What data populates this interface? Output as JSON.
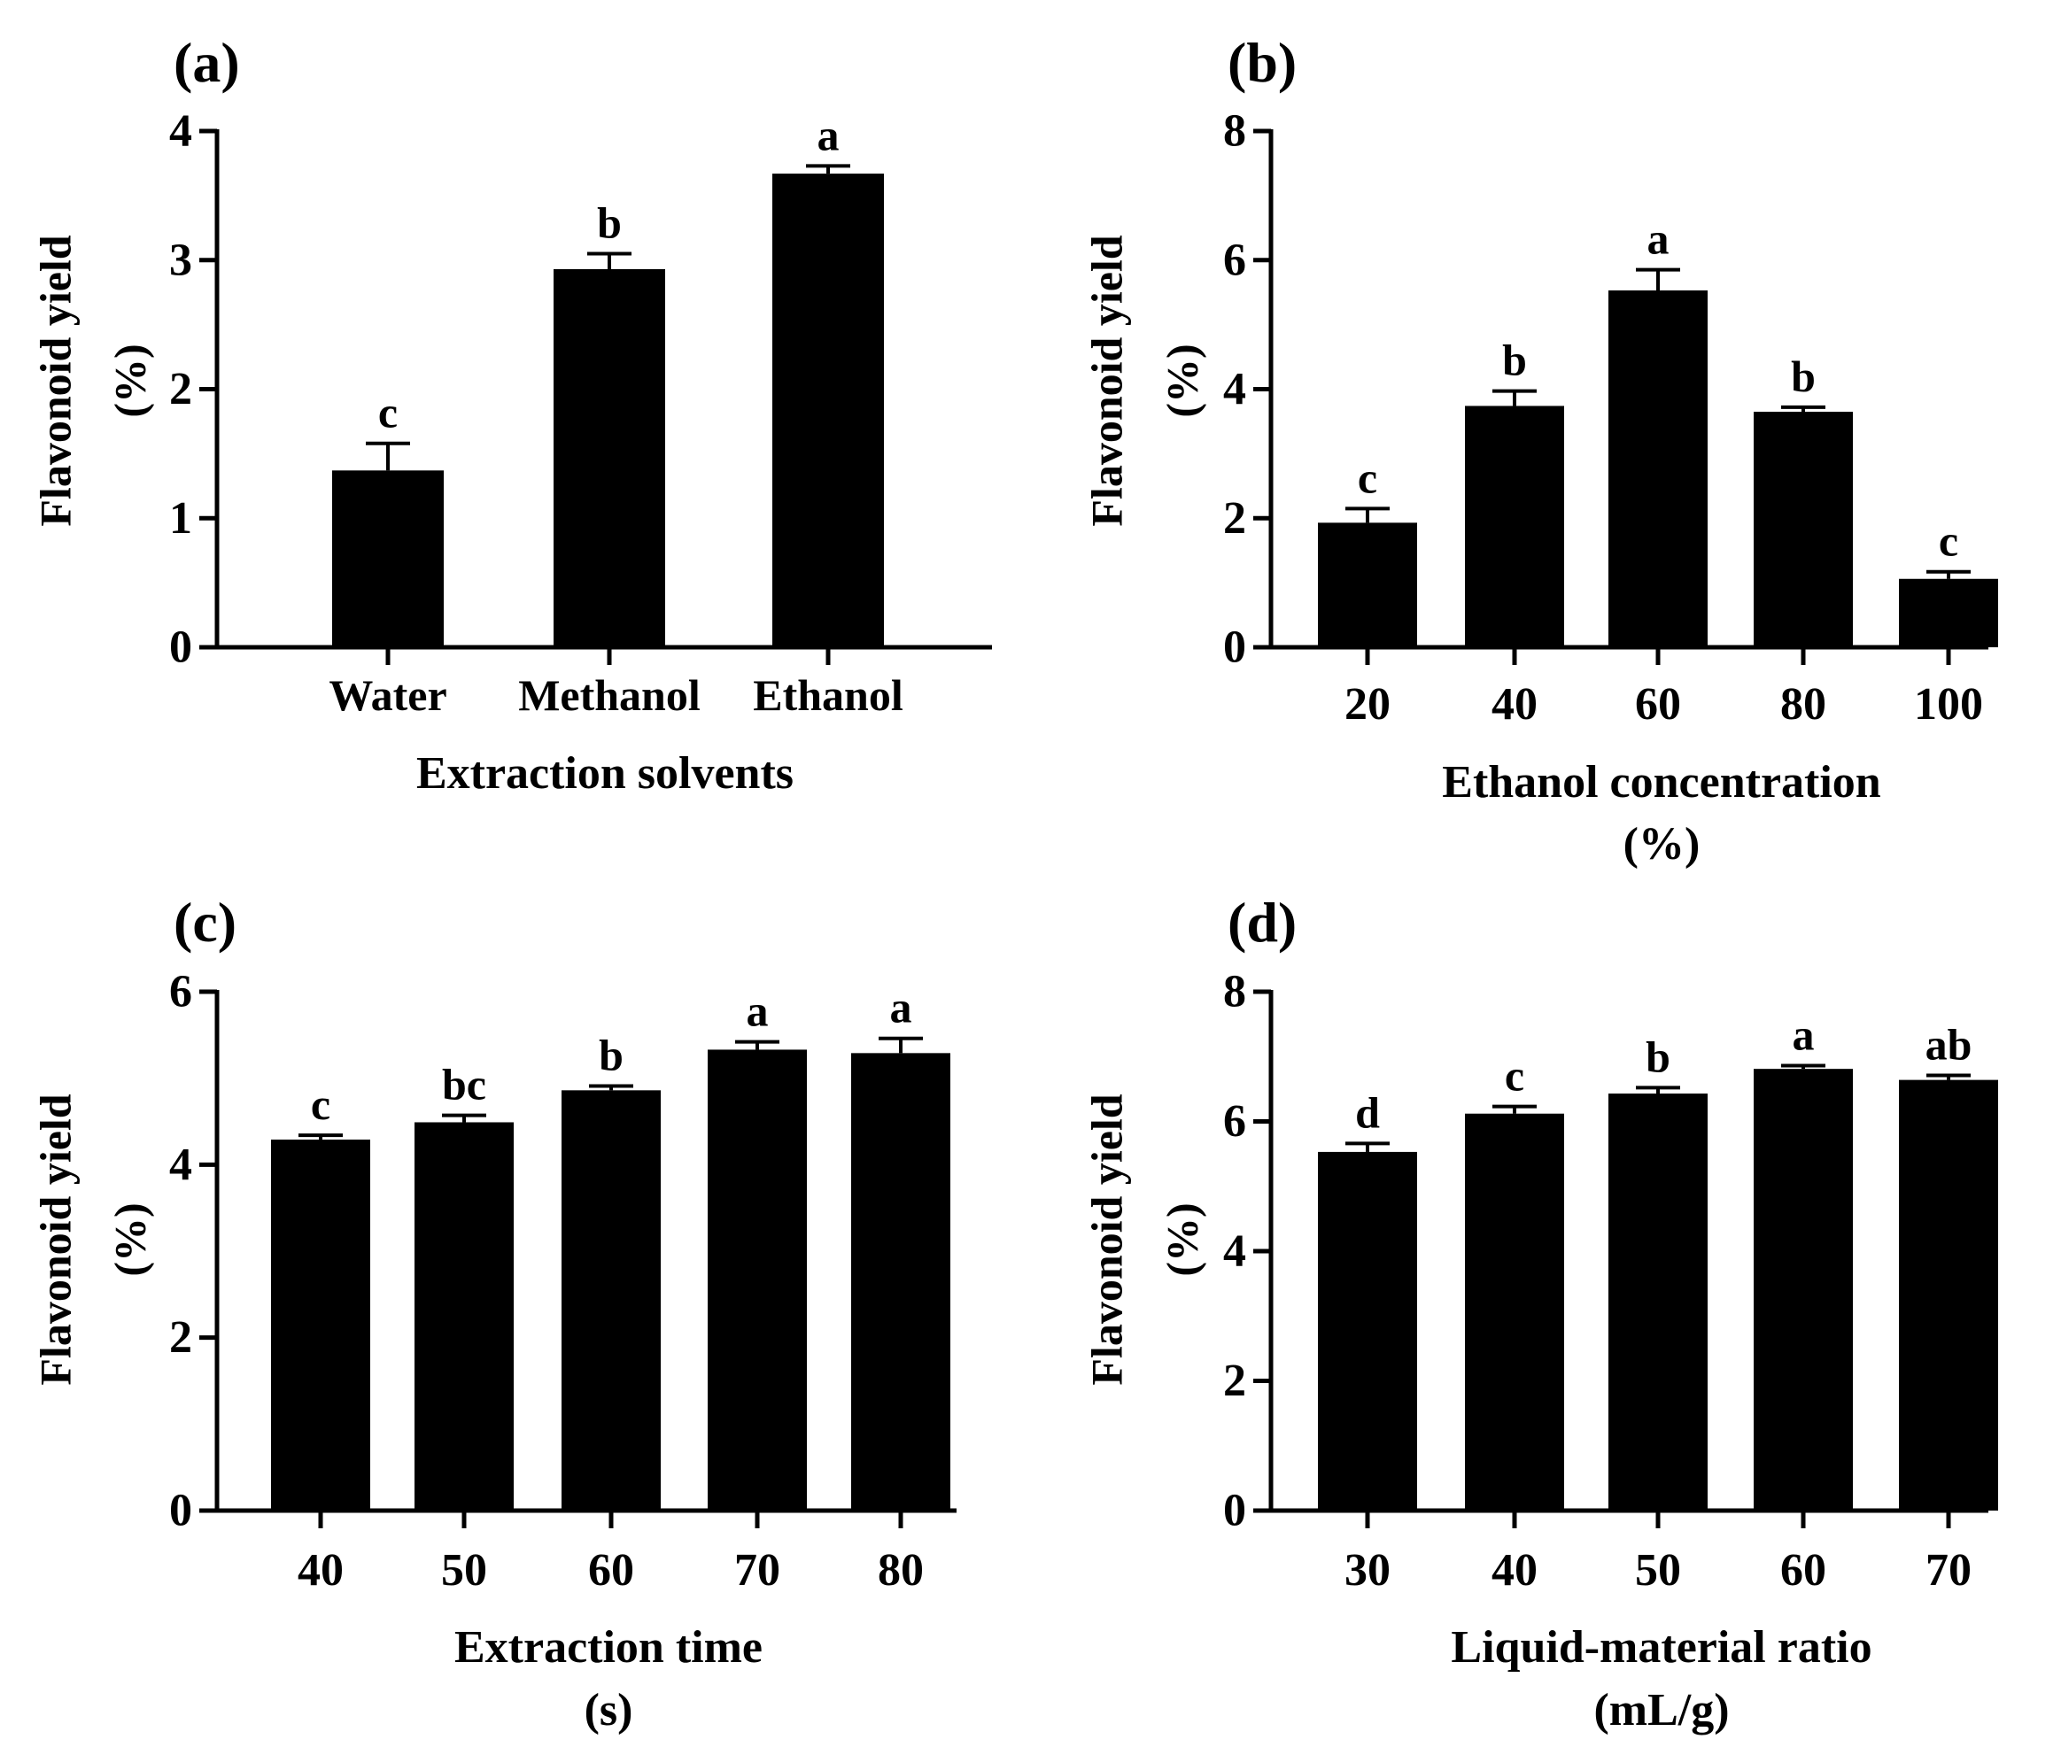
{
  "chart_data": [
    {
      "panel": "(a)",
      "type": "bar",
      "ylabel_line1": "Flavonoid yield",
      "ylabel_line2": "(%)",
      "xlabel": [
        "Extraction solvents"
      ],
      "xlabel_color": "#000000",
      "categories": [
        "Water",
        "Methanol",
        "Ethanol"
      ],
      "values": [
        1.37,
        2.93,
        3.67
      ],
      "errors": [
        0.21,
        0.12,
        0.06
      ],
      "significance": [
        "c",
        "b",
        "a"
      ],
      "ylim": [
        0,
        4
      ],
      "yticks": [
        0,
        1,
        2,
        3,
        4
      ],
      "category_style": "small"
    },
    {
      "panel": "(b)",
      "type": "bar",
      "ylabel_line1": "Flavonoid yield",
      "ylabel_line2": "(%)",
      "xlabel": [
        "Ethanol concentration",
        "(%)"
      ],
      "xlabel_color": "#000000",
      "categories": [
        "20",
        "40",
        "60",
        "80",
        "100"
      ],
      "values": [
        1.93,
        3.74,
        5.53,
        3.65,
        1.06
      ],
      "errors": [
        0.22,
        0.23,
        0.32,
        0.07,
        0.11
      ],
      "significance": [
        "c",
        "b",
        "a",
        "b",
        "c"
      ],
      "ylim": [
        0,
        8
      ],
      "yticks": [
        0,
        2,
        4,
        6,
        8
      ],
      "category_style": "large"
    },
    {
      "panel": "(c)",
      "type": "bar",
      "ylabel_line1": "Flavonoid yield",
      "ylabel_line2": "(%)",
      "xlabel": [
        "Extraction time",
        "(s)"
      ],
      "xlabel_color": "#000000",
      "categories": [
        "40",
        "50",
        "60",
        "70",
        "80"
      ],
      "values": [
        4.29,
        4.49,
        4.86,
        5.33,
        5.29
      ],
      "errors": [
        0.05,
        0.08,
        0.05,
        0.09,
        0.17
      ],
      "significance": [
        "c",
        "bc",
        "b",
        "a",
        "a"
      ],
      "ylim": [
        0,
        6
      ],
      "yticks": [
        0,
        2,
        4,
        6
      ],
      "category_style": "large"
    },
    {
      "panel": "(d)",
      "type": "bar",
      "ylabel_line1": "Flavonoid yield",
      "ylabel_line2": "(%)",
      "xlabel": [
        "Liquid-material ratio",
        "(mL/g)"
      ],
      "xlabel_color": "#3a3a3a",
      "categories": [
        "30",
        "40",
        "50",
        "60",
        "70"
      ],
      "values": [
        5.53,
        6.12,
        6.43,
        6.81,
        6.64
      ],
      "errors": [
        0.13,
        0.11,
        0.09,
        0.05,
        0.07
      ],
      "significance": [
        "d",
        "c",
        "b",
        "a",
        "ab"
      ],
      "ylim": [
        0,
        8
      ],
      "yticks": [
        0,
        2,
        4,
        6,
        8
      ],
      "category_style": "large"
    }
  ]
}
